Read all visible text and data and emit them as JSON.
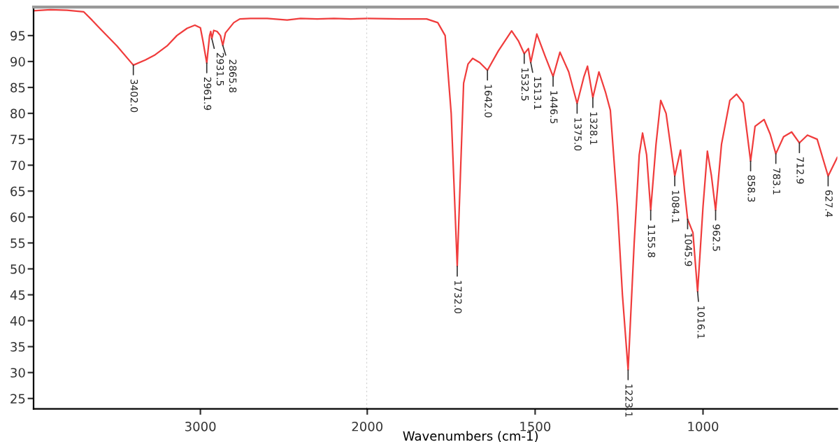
{
  "chart_data": [
    {
      "type": "line",
      "xlim": [
        4000,
        2000
      ],
      "xticks": [
        3000,
        2000
      ],
      "ylim": [
        23,
        100.5
      ],
      "yticks": [
        25,
        30,
        35,
        40,
        45,
        50,
        55,
        60,
        65,
        70,
        75,
        80,
        85,
        90,
        95
      ],
      "tick_labels": "xy",
      "grid": false,
      "legend": false,
      "ref_lines": [
        {
          "axis": "x",
          "value": 2000,
          "color": "#c8c8c8",
          "line_style": "dotted"
        }
      ],
      "series": [
        {
          "color": "#f03c3c",
          "x": [
            4000,
            3900,
            3800,
            3700,
            3650,
            3600,
            3500,
            3402,
            3330,
            3276,
            3200,
            3141,
            3080,
            3033,
            3000,
            2985,
            2961.9,
            2945,
            2938,
            2931.5,
            2920,
            2900,
            2880,
            2865.8,
            2850,
            2800,
            2764,
            2700,
            2600,
            2480,
            2400,
            2300,
            2200,
            2100,
            2000
          ],
          "values": [
            99.8,
            100,
            99.9,
            99.6,
            98,
            96.3,
            93,
            89.3,
            90.3,
            91.2,
            93,
            95,
            96.4,
            97.0,
            96.5,
            94,
            89.7,
            95,
            95.8,
            94.4,
            96,
            95.8,
            95,
            93.1,
            95.5,
            97.5,
            98.2,
            98.3,
            98.3,
            98.0,
            98.3,
            98.2,
            98.3,
            98.2,
            98.3
          ]
        }
      ],
      "annotations": [
        {
          "text": "3402.0",
          "x": 3402,
          "y": 89.3
        },
        {
          "text": "2961.9",
          "x": 2961.9,
          "y": 89.7
        },
        {
          "text": "2931.5",
          "x": 2931.5,
          "y": 94.4
        },
        {
          "text": "2865.8",
          "x": 2865.8,
          "y": 93.1
        }
      ]
    },
    {
      "type": "line",
      "xlim": [
        2000,
        600
      ],
      "xticks": [
        1500,
        1000
      ],
      "ylim": [
        23,
        100.5
      ],
      "tick_labels": "x",
      "grid": false,
      "legend": false,
      "xlabel": "Wavenumbers (cm-1)",
      "series": [
        {
          "color": "#f03c3c",
          "x": [
            2000,
            1900,
            1823,
            1790,
            1768,
            1750,
            1732,
            1713,
            1700,
            1686,
            1665,
            1642,
            1610,
            1570,
            1550,
            1532.5,
            1520,
            1513.1,
            1495,
            1470,
            1446.5,
            1426,
            1400,
            1375,
            1355,
            1344,
            1328.1,
            1310,
            1290,
            1276,
            1255,
            1240,
            1223.1,
            1205,
            1190,
            1180,
            1168,
            1155.8,
            1140,
            1126,
            1110,
            1084.1,
            1067,
            1055,
            1045.9,
            1030,
            1016.1,
            1000,
            987,
            975,
            962.5,
            945,
            920,
            900,
            880,
            858.3,
            845,
            818,
            800,
            783.1,
            760,
            736,
            712.9,
            689,
            660,
            627.4,
            600
          ],
          "values": [
            98.3,
            98.2,
            98.2,
            97.5,
            95,
            80,
            50.5,
            85.8,
            89.5,
            90.6,
            89.8,
            88.3,
            92,
            95.9,
            94,
            91.5,
            92.5,
            89.8,
            95.3,
            91,
            87.1,
            91.8,
            88,
            81.9,
            87,
            89.1,
            83.0,
            88.0,
            84,
            80.6,
            62,
            45,
            30.5,
            55,
            72,
            76.2,
            72,
            61.3,
            74,
            82.5,
            80,
            67.9,
            72.9,
            65,
            59.6,
            57,
            45.6,
            62,
            72.7,
            68,
            61.3,
            74,
            82.5,
            83.7,
            82,
            70.8,
            77.5,
            78.8,
            76,
            72.2,
            75.5,
            76.4,
            74.3,
            75.8,
            75,
            67.9,
            71.5
          ]
        }
      ],
      "annotations": [
        {
          "text": "1732.0",
          "x": 1732,
          "y": 50.5
        },
        {
          "text": "1642.0",
          "x": 1642,
          "y": 88.3
        },
        {
          "text": "1532.5",
          "x": 1532.5,
          "y": 91.5
        },
        {
          "text": "1513.1",
          "x": 1513.1,
          "y": 89.8
        },
        {
          "text": "1446.5",
          "x": 1446.5,
          "y": 87.1
        },
        {
          "text": "1375.0",
          "x": 1375,
          "y": 81.9
        },
        {
          "text": "1328.1",
          "x": 1328.1,
          "y": 83.0
        },
        {
          "text": "1223.1",
          "x": 1223.1,
          "y": 30.5
        },
        {
          "text": "1155.8",
          "x": 1155.8,
          "y": 61.3
        },
        {
          "text": "1084.1",
          "x": 1084.1,
          "y": 67.9
        },
        {
          "text": "1045.9",
          "x": 1045.9,
          "y": 59.6
        },
        {
          "text": "1016.1",
          "x": 1016.1,
          "y": 45.6
        },
        {
          "text": "962.5",
          "x": 962.5,
          "y": 61.3
        },
        {
          "text": "858.3",
          "x": 858.3,
          "y": 70.8
        },
        {
          "text": "783.1",
          "x": 783.1,
          "y": 72.2
        },
        {
          "text": "712.9",
          "x": 712.9,
          "y": 74.3
        },
        {
          "text": "627.4",
          "x": 627.4,
          "y": 67.9
        }
      ]
    }
  ]
}
